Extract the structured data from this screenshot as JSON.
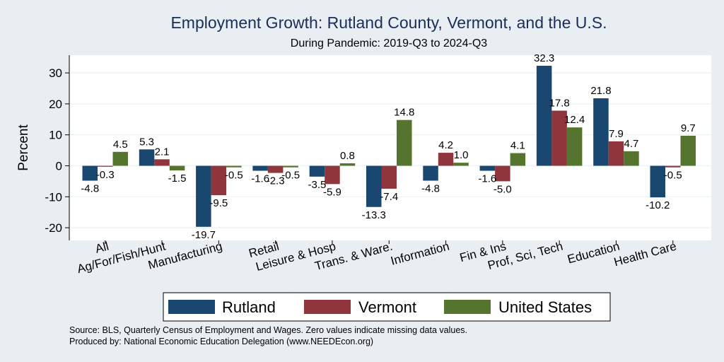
{
  "chart_data": {
    "type": "bar",
    "title": "Employment Growth: Rutland County, Vermont, and the U.S.",
    "subtitle": "During Pandemic: 2019-Q3 to 2024-Q3",
    "ylabel": "Percent",
    "xlabel": "",
    "ylim": [
      -25,
      35
    ],
    "yticks": [
      -20,
      -10,
      0,
      10,
      20,
      30
    ],
    "grid": true,
    "categories": [
      "All",
      "Ag/For/Fish/Hunt",
      "Manufacturing",
      "Retail",
      "Leisure & Hosp",
      "Trans. & Ware.",
      "Information",
      "Fin & Ins",
      "Prof, Sci, Tech",
      "Education",
      "Health Care"
    ],
    "series": [
      {
        "name": "Rutland",
        "color": "#1a476f",
        "values": [
          -4.8,
          5.3,
          -19.7,
          -1.6,
          -3.5,
          -13.3,
          -4.8,
          -1.6,
          32.3,
          21.8,
          -10.2
        ]
      },
      {
        "name": "Vermont",
        "color": "#90353b",
        "values": [
          -0.3,
          2.1,
          -9.5,
          -2.3,
          -5.9,
          -7.4,
          4.2,
          -5.0,
          17.8,
          7.9,
          -0.5
        ]
      },
      {
        "name": "United States",
        "color": "#55752f",
        "values": [
          4.5,
          -1.5,
          -0.5,
          -0.5,
          0.8,
          14.8,
          1.0,
          4.1,
          12.4,
          4.7,
          9.7
        ]
      }
    ],
    "legend_position": "bottom"
  },
  "notes": {
    "source": "Source: BLS, Quarterly Census of Employment and Wages. Zero values indicate missing data values.",
    "produced": "Produced by: National Economic Education Delegation (www.NEEDEcon.org)"
  }
}
